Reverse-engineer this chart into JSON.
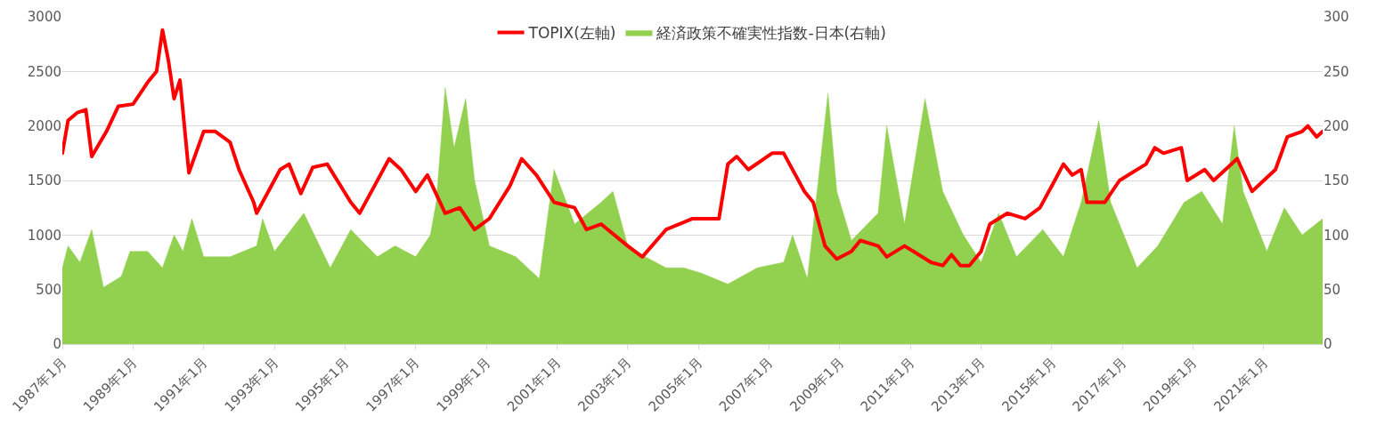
{
  "chart_data": {
    "type": "line",
    "legend": "top",
    "grid": "y",
    "xlim": [
      "1987-01",
      "2022-09"
    ],
    "xticks": [
      {
        "value": "1987-01",
        "label": "1987年1月"
      },
      {
        "value": "1989-01",
        "label": "1989年1月"
      },
      {
        "value": "1991-01",
        "label": "1991年1月"
      },
      {
        "value": "1993-01",
        "label": "1993年1月"
      },
      {
        "value": "1995-01",
        "label": "1995年1月"
      },
      {
        "value": "1997-01",
        "label": "1997年1月"
      },
      {
        "value": "1999-01",
        "label": "1999年1月"
      },
      {
        "value": "2001-01",
        "label": "2001年1月"
      },
      {
        "value": "2003-01",
        "label": "2003年1月"
      },
      {
        "value": "2005-01",
        "label": "2005年1月"
      },
      {
        "value": "2007-01",
        "label": "2007年1月"
      },
      {
        "value": "2009-01",
        "label": "2009年1月"
      },
      {
        "value": "2011-01",
        "label": "2011年1月"
      },
      {
        "value": "2013-01",
        "label": "2013年1月"
      },
      {
        "value": "2015-01",
        "label": "2015年1月"
      },
      {
        "value": "2017-01",
        "label": "2017年1月"
      },
      {
        "value": "2019-01",
        "label": "2019年1月"
      },
      {
        "value": "2021-01",
        "label": "2021年1月"
      }
    ],
    "ylim": [
      0,
      3000
    ],
    "yticks": [
      0,
      500,
      1000,
      1500,
      2000,
      2500,
      3000
    ],
    "y2lim": [
      0,
      300
    ],
    "y2ticks": [
      0,
      50,
      100,
      150,
      200,
      250,
      300
    ],
    "series": [
      {
        "name": "TOPIX(左軸)",
        "color": "#ff0000",
        "x": [
          "1987-01",
          "1987-03",
          "1987-06",
          "1987-09",
          "1987-11",
          "1988-04",
          "1988-08",
          "1989-01",
          "1989-06",
          "1989-09",
          "1989-11",
          "1990-01",
          "1990-03",
          "1990-05",
          "1990-08",
          "1991-01",
          "1991-05",
          "1991-10",
          "1992-01",
          "1992-06",
          "1992-07",
          "1993-03",
          "1993-06",
          "1993-10",
          "1994-02",
          "1994-07",
          "1995-03",
          "1995-06",
          "1995-11",
          "1996-04",
          "1996-08",
          "1997-01",
          "1997-05",
          "1997-11",
          "1998-04",
          "1998-09",
          "1999-02",
          "1999-09",
          "2000-01",
          "2000-06",
          "2000-12",
          "2001-07",
          "2001-11",
          "2002-04",
          "2003-01",
          "2003-06",
          "2004-02",
          "2004-11",
          "2005-08",
          "2005-11",
          "2006-02",
          "2006-06",
          "2007-02",
          "2007-06",
          "2008-01",
          "2008-04",
          "2008-08",
          "2008-12",
          "2009-05",
          "2009-08",
          "2010-02",
          "2010-05",
          "2010-11",
          "2011-02",
          "2011-08",
          "2011-12",
          "2012-03",
          "2012-06",
          "2012-09",
          "2013-01",
          "2013-04",
          "2013-10",
          "2014-04",
          "2014-09",
          "2015-02",
          "2015-05",
          "2015-08",
          "2015-11",
          "2016-01",
          "2016-07",
          "2016-12",
          "2017-09",
          "2017-12",
          "2018-03",
          "2018-09",
          "2018-11",
          "2019-05",
          "2019-08",
          "2020-04",
          "2020-09",
          "2021-05",
          "2021-09",
          "2022-02",
          "2022-04",
          "2022-07",
          "2022-09"
        ],
        "values": [
          1750,
          2050,
          2120,
          2150,
          1720,
          1950,
          2180,
          2200,
          2400,
          2500,
          2880,
          2600,
          2250,
          2420,
          1570,
          1950,
          1950,
          1850,
          1600,
          1300,
          1200,
          1600,
          1650,
          1380,
          1620,
          1650,
          1300,
          1200,
          1450,
          1700,
          1600,
          1400,
          1550,
          1200,
          1250,
          1050,
          1150,
          1450,
          1700,
          1550,
          1300,
          1250,
          1050,
          1100,
          900,
          800,
          1050,
          1150,
          1150,
          1650,
          1720,
          1600,
          1750,
          1750,
          1400,
          1300,
          900,
          780,
          850,
          950,
          900,
          800,
          900,
          850,
          750,
          720,
          820,
          720,
          720,
          850,
          1100,
          1200,
          1150,
          1250,
          1500,
          1650,
          1550,
          1600,
          1300,
          1300,
          1500,
          1650,
          1800,
          1750,
          1800,
          1500,
          1600,
          1500,
          1700,
          1400,
          1600,
          1900,
          1950,
          2000,
          1900,
          1950
        ]
      },
      {
        "name": "経済政策不確実性指数-日本(右軸)",
        "type": "area",
        "axis": "y2",
        "color": "#92d050",
        "x": [
          "1987-01",
          "1987-03",
          "1987-07",
          "1987-11",
          "1988-03",
          "1988-09",
          "1988-12",
          "1989-06",
          "1989-11",
          "1990-03",
          "1990-06",
          "1990-09",
          "1991-01",
          "1991-10",
          "1992-07",
          "1992-09",
          "1993-01",
          "1993-11",
          "1994-08",
          "1995-03",
          "1995-12",
          "1996-06",
          "1997-01",
          "1997-06",
          "1997-08",
          "1997-11",
          "1998-02",
          "1998-06",
          "1998-09",
          "1999-02",
          "1999-11",
          "2000-07",
          "2000-12",
          "2001-07",
          "2002-04",
          "2002-08",
          "2003-01",
          "2003-07",
          "2004-02",
          "2004-08",
          "2005-02",
          "2005-11",
          "2006-09",
          "2007-06",
          "2007-09",
          "2008-02",
          "2008-09",
          "2008-12",
          "2009-05",
          "2010-02",
          "2010-05",
          "2010-11",
          "2011-06",
          "2011-12",
          "2012-07",
          "2013-01",
          "2013-07",
          "2014-01",
          "2014-10",
          "2015-05",
          "2015-11",
          "2016-05",
          "2016-09",
          "2017-06",
          "2018-01",
          "2018-10",
          "2019-04",
          "2019-11",
          "2020-03",
          "2020-06",
          "2021-02",
          "2021-08",
          "2022-02",
          "2022-09"
        ],
        "values": [
          70,
          90,
          75,
          105,
          52,
          62,
          85,
          85,
          70,
          100,
          85,
          115,
          80,
          80,
          90,
          115,
          85,
          120,
          70,
          105,
          80,
          90,
          80,
          100,
          130,
          235,
          180,
          225,
          150,
          90,
          80,
          60,
          160,
          110,
          130,
          140,
          90,
          80,
          70,
          70,
          65,
          55,
          70,
          75,
          100,
          60,
          230,
          140,
          95,
          120,
          200,
          110,
          225,
          140,
          100,
          75,
          120,
          80,
          105,
          80,
          130,
          205,
          130,
          70,
          90,
          130,
          140,
          110,
          200,
          140,
          85,
          125,
          100,
          115
        ]
      }
    ]
  }
}
